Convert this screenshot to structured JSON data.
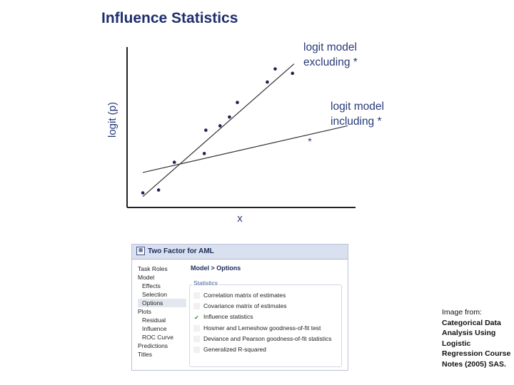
{
  "title": "Influence Statistics",
  "chart_data": {
    "type": "scatter",
    "title": "Influence Statistics",
    "xlabel": "x",
    "ylabel": "logit (p)",
    "grid": false,
    "points": [
      {
        "x": 1.0,
        "y": 1.0
      },
      {
        "x": 2.0,
        "y": 1.2
      },
      {
        "x": 3.0,
        "y": 3.1
      },
      {
        "x": 4.9,
        "y": 3.7
      },
      {
        "x": 5.0,
        "y": 5.3
      },
      {
        "x": 5.9,
        "y": 5.6
      },
      {
        "x": 6.5,
        "y": 6.2
      },
      {
        "x": 7.0,
        "y": 7.2
      },
      {
        "x": 8.9,
        "y": 8.6
      },
      {
        "x": 9.4,
        "y": 9.5
      },
      {
        "x": 10.5,
        "y": 9.2
      }
    ],
    "influential_point": {
      "x": 11.6,
      "y": 4.6,
      "marker": "*"
    },
    "lines": [
      {
        "label_line1": "logit model",
        "label_line2": "excluding *",
        "from": [
          1.0,
          0.75
        ],
        "to": [
          10.6,
          9.85
        ]
      },
      {
        "label_line1": "logit model",
        "label_line2": "including *",
        "from": [
          1.0,
          2.4
        ],
        "to": [
          14.0,
          5.6
        ]
      }
    ],
    "xlim": [
      0,
      14.5
    ],
    "ylim": [
      0,
      11
    ]
  },
  "dialog": {
    "title": "Two Factor for AML",
    "heading": "Model > Options",
    "group_label": "Statistics",
    "tree": [
      {
        "label": "Task Roles",
        "level": 0,
        "selected": false
      },
      {
        "label": "Model",
        "level": 0,
        "selected": false
      },
      {
        "label": "Effects",
        "level": 1,
        "selected": false
      },
      {
        "label": "Selection",
        "level": 1,
        "selected": false
      },
      {
        "label": "Options",
        "level": 1,
        "selected": true
      },
      {
        "label": "Plots",
        "level": 0,
        "selected": false
      },
      {
        "label": "Residual",
        "level": 1,
        "selected": false
      },
      {
        "label": "Influence",
        "level": 1,
        "selected": false
      },
      {
        "label": "ROC Curve",
        "level": 1,
        "selected": false
      },
      {
        "label": "Predictions",
        "level": 0,
        "selected": false
      },
      {
        "label": "Titles",
        "level": 0,
        "selected": false
      }
    ],
    "options": [
      {
        "label": "Correlation matrix of estimates",
        "checked": false
      },
      {
        "label": "Covariance matrix of estimates",
        "checked": false
      },
      {
        "label": "Influence statistics",
        "checked": true
      },
      {
        "label": "Hosmer and Lemeshow goodness-of-fit test",
        "checked": false
      },
      {
        "label": "Deviance and Pearson goodness-of-fit statistics",
        "checked": false
      },
      {
        "label": "Generalized R-squared",
        "checked": false
      }
    ]
  },
  "credit": {
    "prefix": "Image from:",
    "bold": "Categorical Data Analysis Using Logistic Regression Course Notes (2005) SAS."
  },
  "colors": {
    "title": "#1f2f6b",
    "chart_text": "#283a7a",
    "points": "#1b2550",
    "axes": "#222222"
  }
}
